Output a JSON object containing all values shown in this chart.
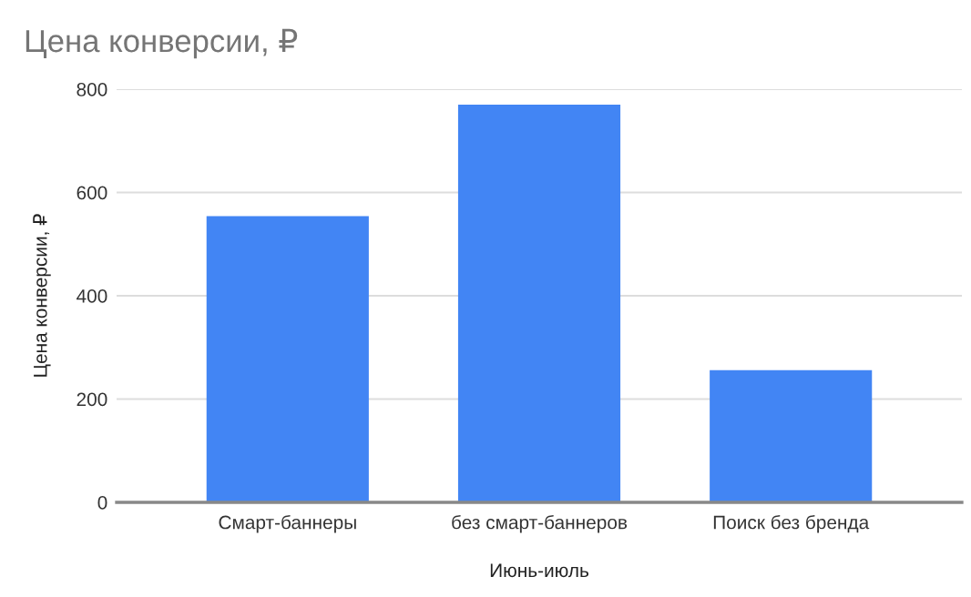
{
  "chart_data": {
    "type": "bar",
    "title": "Цена конверсии, ₽",
    "xlabel": "Июнь-июль",
    "ylabel": "Цена конверсии, ₽",
    "categories": [
      "Смарт-баннеры",
      "без смарт-баннеров",
      "Поиск без бренда"
    ],
    "values": [
      554,
      770,
      256
    ],
    "color": "#4285f4",
    "ylim": [
      0,
      800
    ],
    "yticks": [
      0,
      200,
      400,
      600,
      800
    ],
    "grid": "y",
    "legend": false
  }
}
